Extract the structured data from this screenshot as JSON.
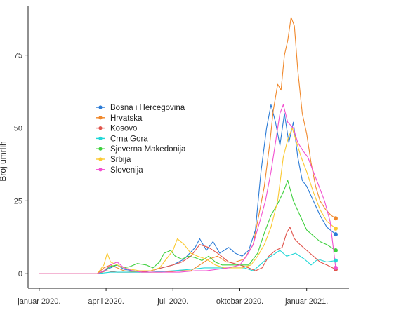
{
  "chart_data": {
    "type": "line",
    "title": "",
    "xlabel": "",
    "ylabel": "Broj umrlih",
    "ylim": [
      -5,
      92
    ],
    "yticks": [
      0,
      25,
      50,
      75
    ],
    "xlim": [
      -0.5,
      13.9
    ],
    "xticks": [
      {
        "x": 0,
        "label": "januar 2020."
      },
      {
        "x": 3,
        "label": "april 2020."
      },
      {
        "x": 6,
        "label": "juli 2020."
      },
      {
        "x": 9,
        "label": "oktobar 2020."
      },
      {
        "x": 12,
        "label": "januar 2021."
      }
    ],
    "x_unit": "months since januar 2020.",
    "grid": false,
    "legend_position": "left-middle",
    "end_markers": true,
    "series": [
      {
        "name": "Bosna i Hercegovina",
        "color": "#2b7bd6",
        "points": [
          [
            0,
            0
          ],
          [
            2.6,
            0
          ],
          [
            2.9,
            1
          ],
          [
            3.2,
            2
          ],
          [
            3.5,
            3
          ],
          [
            3.8,
            1.5
          ],
          [
            4.2,
            1
          ],
          [
            4.6,
            0.5
          ],
          [
            5,
            1
          ],
          [
            5.5,
            2
          ],
          [
            6,
            3
          ],
          [
            6.5,
            5
          ],
          [
            7,
            9
          ],
          [
            7.2,
            12
          ],
          [
            7.5,
            8
          ],
          [
            7.8,
            11
          ],
          [
            8.1,
            7
          ],
          [
            8.5,
            9
          ],
          [
            8.8,
            7
          ],
          [
            9.1,
            6
          ],
          [
            9.4,
            8
          ],
          [
            9.7,
            15
          ],
          [
            9.95,
            35
          ],
          [
            10.2,
            50
          ],
          [
            10.4,
            58
          ],
          [
            10.6,
            52
          ],
          [
            10.8,
            44
          ],
          [
            11,
            55
          ],
          [
            11.2,
            45
          ],
          [
            11.4,
            52
          ],
          [
            11.6,
            40
          ],
          [
            11.8,
            32
          ],
          [
            12,
            30
          ],
          [
            12.3,
            25
          ],
          [
            12.6,
            20
          ],
          [
            12.9,
            16
          ],
          [
            13.3,
            13.5
          ]
        ]
      },
      {
        "name": "Hrvatska",
        "color": "#f0882b",
        "points": [
          [
            0,
            0
          ],
          [
            2.6,
            0
          ],
          [
            2.9,
            2
          ],
          [
            3.2,
            3
          ],
          [
            3.5,
            2
          ],
          [
            3.8,
            1
          ],
          [
            4.5,
            0.5
          ],
          [
            5.5,
            0.5
          ],
          [
            6.3,
            1
          ],
          [
            6.8,
            1
          ],
          [
            7.2,
            3
          ],
          [
            7.6,
            5
          ],
          [
            8,
            6
          ],
          [
            8.4,
            4
          ],
          [
            8.8,
            4
          ],
          [
            9.2,
            5
          ],
          [
            9.6,
            10
          ],
          [
            9.9,
            22
          ],
          [
            10.1,
            30
          ],
          [
            10.35,
            45
          ],
          [
            10.5,
            56
          ],
          [
            10.7,
            65
          ],
          [
            10.85,
            63
          ],
          [
            11,
            75
          ],
          [
            11.15,
            80
          ],
          [
            11.3,
            88
          ],
          [
            11.45,
            85
          ],
          [
            11.6,
            70
          ],
          [
            11.8,
            55
          ],
          [
            12,
            48
          ],
          [
            12.2,
            38
          ],
          [
            12.4,
            30
          ],
          [
            12.6,
            25
          ],
          [
            12.85,
            22
          ],
          [
            13.1,
            20
          ],
          [
            13.3,
            19
          ]
        ]
      },
      {
        "name": "Kosovo",
        "color": "#e0534b",
        "points": [
          [
            0,
            0
          ],
          [
            2.6,
            0
          ],
          [
            3,
            1
          ],
          [
            3.5,
            0.5
          ],
          [
            4.5,
            0.5
          ],
          [
            5,
            1
          ],
          [
            5.5,
            2
          ],
          [
            6,
            3
          ],
          [
            6.4,
            4
          ],
          [
            6.8,
            6
          ],
          [
            7.2,
            10
          ],
          [
            7.6,
            9
          ],
          [
            8,
            7
          ],
          [
            8.5,
            4
          ],
          [
            9,
            3
          ],
          [
            9.4,
            2
          ],
          [
            9.7,
            1
          ],
          [
            10,
            2
          ],
          [
            10.3,
            6
          ],
          [
            10.6,
            8
          ],
          [
            10.9,
            9
          ],
          [
            11.1,
            14
          ],
          [
            11.25,
            16
          ],
          [
            11.45,
            12
          ],
          [
            11.7,
            10
          ],
          [
            12,
            8
          ],
          [
            12.3,
            6
          ],
          [
            12.6,
            4
          ],
          [
            12.9,
            3
          ],
          [
            13.3,
            1.5
          ]
        ]
      },
      {
        "name": "Crna Gora",
        "color": "#22d7d7",
        "points": [
          [
            0,
            0
          ],
          [
            2.6,
            0
          ],
          [
            3.2,
            0.5
          ],
          [
            4,
            0.5
          ],
          [
            5,
            0.5
          ],
          [
            6,
            1
          ],
          [
            6.8,
            1.5
          ],
          [
            7.4,
            2
          ],
          [
            8,
            2
          ],
          [
            8.6,
            2
          ],
          [
            9.2,
            2
          ],
          [
            9.6,
            1
          ],
          [
            9.9,
            3
          ],
          [
            10.2,
            5
          ],
          [
            10.5,
            6.5
          ],
          [
            10.8,
            8
          ],
          [
            11.1,
            6
          ],
          [
            11.5,
            7
          ],
          [
            11.9,
            5
          ],
          [
            12.2,
            3
          ],
          [
            12.5,
            5
          ],
          [
            12.9,
            4
          ],
          [
            13.3,
            4.5
          ]
        ]
      },
      {
        "name": "Sjeverna Makedonija",
        "color": "#3ed03e",
        "points": [
          [
            0,
            0
          ],
          [
            2.6,
            0
          ],
          [
            2.9,
            1
          ],
          [
            3.2,
            2.5
          ],
          [
            3.5,
            3
          ],
          [
            3.8,
            2
          ],
          [
            4.1,
            2.5
          ],
          [
            4.4,
            3.5
          ],
          [
            4.8,
            3
          ],
          [
            5.1,
            2
          ],
          [
            5.4,
            4
          ],
          [
            5.6,
            7
          ],
          [
            5.9,
            8
          ],
          [
            6.1,
            6
          ],
          [
            6.4,
            5
          ],
          [
            6.7,
            6
          ],
          [
            7,
            5.5
          ],
          [
            7.3,
            4.5
          ],
          [
            7.6,
            6
          ],
          [
            7.9,
            4
          ],
          [
            8.2,
            3
          ],
          [
            8.6,
            3
          ],
          [
            9,
            3
          ],
          [
            9.4,
            3
          ],
          [
            9.8,
            7
          ],
          [
            10.1,
            14
          ],
          [
            10.4,
            20
          ],
          [
            10.7,
            24
          ],
          [
            10.95,
            28
          ],
          [
            11.15,
            32
          ],
          [
            11.4,
            25
          ],
          [
            11.7,
            20
          ],
          [
            12,
            15
          ],
          [
            12.3,
            13
          ],
          [
            12.6,
            11
          ],
          [
            12.9,
            10
          ],
          [
            13.3,
            8
          ]
        ]
      },
      {
        "name": "Srbija",
        "color": "#fbc931",
        "points": [
          [
            0,
            0
          ],
          [
            2.6,
            0
          ],
          [
            2.9,
            3
          ],
          [
            3.05,
            7
          ],
          [
            3.2,
            4
          ],
          [
            3.5,
            3
          ],
          [
            3.8,
            2
          ],
          [
            4.1,
            1.5
          ],
          [
            4.5,
            1
          ],
          [
            5,
            1
          ],
          [
            5.4,
            2
          ],
          [
            5.7,
            5
          ],
          [
            6,
            8
          ],
          [
            6.2,
            12
          ],
          [
            6.5,
            10
          ],
          [
            6.8,
            7
          ],
          [
            7.1,
            6
          ],
          [
            7.5,
            5
          ],
          [
            7.9,
            3
          ],
          [
            8.3,
            2
          ],
          [
            8.7,
            2
          ],
          [
            9.1,
            2
          ],
          [
            9.5,
            3
          ],
          [
            9.8,
            6
          ],
          [
            10.1,
            10
          ],
          [
            10.4,
            16
          ],
          [
            10.7,
            25
          ],
          [
            10.95,
            40
          ],
          [
            11.15,
            46
          ],
          [
            11.35,
            50
          ],
          [
            11.55,
            45
          ],
          [
            11.75,
            40
          ],
          [
            12,
            35
          ],
          [
            12.3,
            28
          ],
          [
            12.6,
            22
          ],
          [
            12.9,
            18
          ],
          [
            13.3,
            15.5
          ]
        ]
      },
      {
        "name": "Slovenija",
        "color": "#f24fd0",
        "points": [
          [
            0,
            0
          ],
          [
            2.6,
            0
          ],
          [
            2.9,
            1
          ],
          [
            3.2,
            3
          ],
          [
            3.5,
            4
          ],
          [
            3.8,
            2
          ],
          [
            4.2,
            1
          ],
          [
            4.6,
            0.5
          ],
          [
            5.5,
            0.5
          ],
          [
            6.3,
            0.5
          ],
          [
            7,
            1
          ],
          [
            7.5,
            1
          ],
          [
            8,
            1.5
          ],
          [
            8.5,
            2
          ],
          [
            9,
            3
          ],
          [
            9.3,
            6
          ],
          [
            9.6,
            10
          ],
          [
            9.9,
            18
          ],
          [
            10.15,
            25
          ],
          [
            10.4,
            35
          ],
          [
            10.6,
            45
          ],
          [
            10.8,
            55
          ],
          [
            10.95,
            58
          ],
          [
            11.15,
            52
          ],
          [
            11.4,
            50
          ],
          [
            11.6,
            45
          ],
          [
            11.85,
            42
          ],
          [
            12.05,
            40
          ],
          [
            12.3,
            35
          ],
          [
            12.55,
            30
          ],
          [
            12.8,
            25
          ],
          [
            13.05,
            18
          ],
          [
            13.3,
            2
          ]
        ]
      }
    ]
  }
}
